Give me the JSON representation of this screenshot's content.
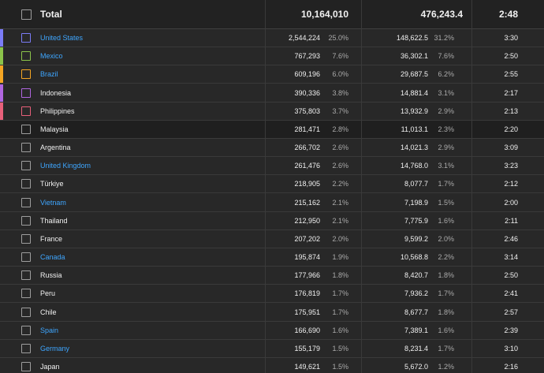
{
  "total": {
    "label": "Total",
    "views": "10,164,010",
    "watch_time": "476,243.4",
    "avg_duration": "2:48"
  },
  "rows": [
    {
      "name": "United States",
      "link": true,
      "color": "#7b7cf7",
      "views": "2,544,224",
      "views_pct": "25.0%",
      "watch_time": "148,622.5",
      "watch_pct": "31.2%",
      "avg_duration": "3:30"
    },
    {
      "name": "Mexico",
      "link": true,
      "color": "#8bc34a",
      "views": "767,293",
      "views_pct": "7.6%",
      "watch_time": "36,302.1",
      "watch_pct": "7.6%",
      "avg_duration": "2:50"
    },
    {
      "name": "Brazil",
      "link": true,
      "color": "#f5a623",
      "views": "609,196",
      "views_pct": "6.0%",
      "watch_time": "29,687.5",
      "watch_pct": "6.2%",
      "avg_duration": "2:55"
    },
    {
      "name": "Indonesia",
      "link": false,
      "color": "#b066e0",
      "views": "390,336",
      "views_pct": "3.8%",
      "watch_time": "14,881.4",
      "watch_pct": "3.1%",
      "avg_duration": "2:17"
    },
    {
      "name": "Philippines",
      "link": false,
      "color": "#e8607a",
      "views": "375,803",
      "views_pct": "3.7%",
      "watch_time": "13,932.9",
      "watch_pct": "2.9%",
      "avg_duration": "2:13"
    },
    {
      "name": "Malaysia",
      "link": false,
      "highlight": true,
      "views": "281,471",
      "views_pct": "2.8%",
      "watch_time": "11,013.1",
      "watch_pct": "2.3%",
      "avg_duration": "2:20"
    },
    {
      "name": "Argentina",
      "link": false,
      "views": "266,702",
      "views_pct": "2.6%",
      "watch_time": "14,021.3",
      "watch_pct": "2.9%",
      "avg_duration": "3:09"
    },
    {
      "name": "United Kingdom",
      "link": true,
      "views": "261,476",
      "views_pct": "2.6%",
      "watch_time": "14,768.0",
      "watch_pct": "3.1%",
      "avg_duration": "3:23"
    },
    {
      "name": "Türkiye",
      "link": false,
      "views": "218,905",
      "views_pct": "2.2%",
      "watch_time": "8,077.7",
      "watch_pct": "1.7%",
      "avg_duration": "2:12"
    },
    {
      "name": "Vietnam",
      "link": true,
      "views": "215,162",
      "views_pct": "2.1%",
      "watch_time": "7,198.9",
      "watch_pct": "1.5%",
      "avg_duration": "2:00"
    },
    {
      "name": "Thailand",
      "link": false,
      "views": "212,950",
      "views_pct": "2.1%",
      "watch_time": "7,775.9",
      "watch_pct": "1.6%",
      "avg_duration": "2:11"
    },
    {
      "name": "France",
      "link": false,
      "views": "207,202",
      "views_pct": "2.0%",
      "watch_time": "9,599.2",
      "watch_pct": "2.0%",
      "avg_duration": "2:46"
    },
    {
      "name": "Canada",
      "link": true,
      "views": "195,874",
      "views_pct": "1.9%",
      "watch_time": "10,568.8",
      "watch_pct": "2.2%",
      "avg_duration": "3:14"
    },
    {
      "name": "Russia",
      "link": false,
      "views": "177,966",
      "views_pct": "1.8%",
      "watch_time": "8,420.7",
      "watch_pct": "1.8%",
      "avg_duration": "2:50"
    },
    {
      "name": "Peru",
      "link": false,
      "views": "176,819",
      "views_pct": "1.7%",
      "watch_time": "7,936.2",
      "watch_pct": "1.7%",
      "avg_duration": "2:41"
    },
    {
      "name": "Chile",
      "link": false,
      "views": "175,951",
      "views_pct": "1.7%",
      "watch_time": "8,677.7",
      "watch_pct": "1.8%",
      "avg_duration": "2:57"
    },
    {
      "name": "Spain",
      "link": true,
      "views": "166,690",
      "views_pct": "1.6%",
      "watch_time": "7,389.1",
      "watch_pct": "1.6%",
      "avg_duration": "2:39"
    },
    {
      "name": "Germany",
      "link": true,
      "views": "155,179",
      "views_pct": "1.5%",
      "watch_time": "8,231.4",
      "watch_pct": "1.7%",
      "avg_duration": "3:10"
    },
    {
      "name": "Japan",
      "link": false,
      "views": "149,621",
      "views_pct": "1.5%",
      "watch_time": "5,672.0",
      "watch_pct": "1.2%",
      "avg_duration": "2:16"
    }
  ]
}
